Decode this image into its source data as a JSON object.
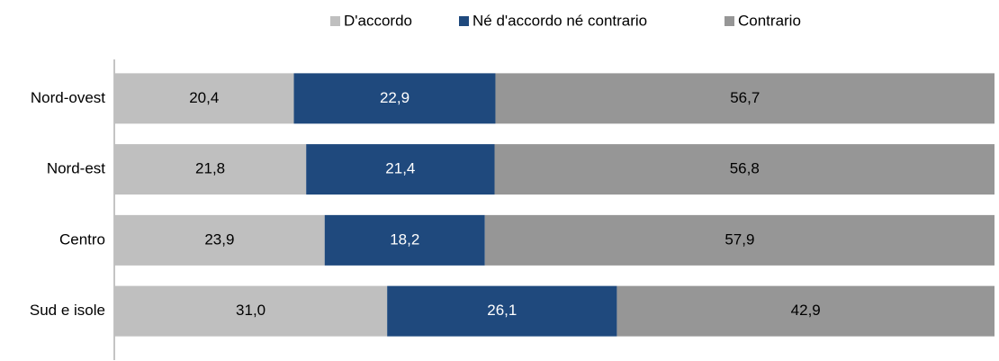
{
  "chart_data": {
    "type": "stacked-bar-horizontal",
    "categories": [
      "Nord-ovest",
      "Nord-est",
      "Centro",
      "Sud e isole"
    ],
    "series": [
      {
        "name": "D'accordo",
        "color": "#bfbfbf",
        "values": [
          20.4,
          21.8,
          23.9,
          31.0
        ],
        "value_labels": [
          "20,4",
          "21,8",
          "23,9",
          "31,0"
        ]
      },
      {
        "name": "Né d'accordo né contrario",
        "color": "#1f497d",
        "values": [
          22.9,
          21.4,
          18.2,
          26.1
        ],
        "value_labels": [
          "22,9",
          "21,4",
          "18,2",
          "26,1"
        ]
      },
      {
        "name": "Contrario",
        "color": "#969696",
        "values": [
          56.7,
          56.8,
          57.9,
          42.9
        ],
        "value_labels": [
          "56,7",
          "56,8",
          "57,9",
          "42,9"
        ]
      }
    ],
    "xlim": [
      0,
      100
    ],
    "legend": "top"
  }
}
